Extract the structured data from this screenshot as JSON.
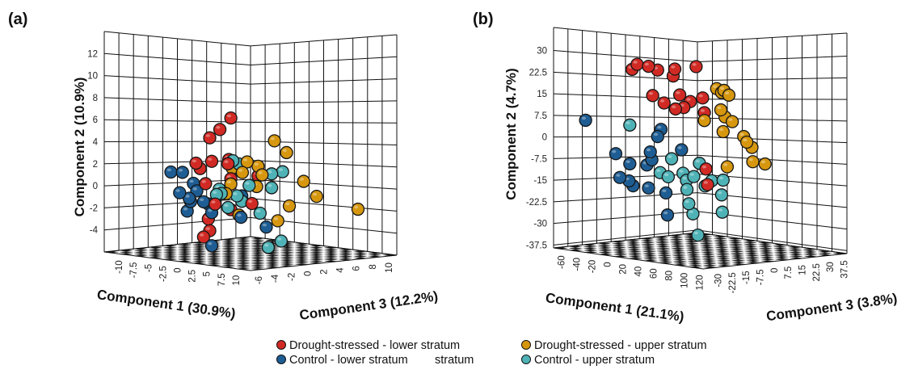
{
  "legend": {
    "items": [
      {
        "label": "Drought-stressed - lower stratum",
        "color": "#d12a24"
      },
      {
        "label": "Drought-stressed - upper stratum",
        "color": "#d6970f"
      },
      {
        "label": "Control - lower stratum",
        "color": "#1e5d93"
      },
      {
        "label": "Control - upper stratum",
        "color": "#4fb2b6"
      }
    ],
    "stray_text": "stratum"
  },
  "chart_data": [
    {
      "panel_label": "(a)",
      "type": "scatter",
      "projection": "3d",
      "grid": true,
      "axes": {
        "x": {
          "label": "Component 1 (30.9%)",
          "range": [
            -12.5,
            12.5
          ],
          "ticks": [
            "-10",
            "-7.5",
            "-5",
            "-2.5",
            "0",
            "2.5",
            "5",
            "7.5",
            "10"
          ],
          "tick_values": [
            -10,
            -7.5,
            -5,
            -2.5,
            0,
            2.5,
            5,
            7.5,
            10
          ]
        },
        "y": {
          "label": "Component 2 (10.9%)",
          "range": [
            -6,
            14
          ],
          "ticks": [
            "-4",
            "-2",
            "0",
            "2",
            "4",
            "6",
            "8",
            "10",
            "12"
          ],
          "tick_values": [
            -4,
            -2,
            0,
            2,
            4,
            6,
            8,
            10,
            12
          ]
        },
        "z": {
          "label": "Component 3 (12.2%)",
          "range": [
            -7,
            11
          ],
          "ticks": [
            "-6",
            "-4",
            "-2",
            "0",
            "2",
            "4",
            "6",
            "8",
            "10"
          ],
          "tick_values": [
            -6,
            -4,
            -2,
            0,
            2,
            4,
            6,
            8,
            10
          ]
        }
      },
      "point_format": [
        "component1",
        "component2",
        "component3"
      ],
      "series": [
        {
          "name": "Drought-stressed - lower stratum",
          "color": "#d12a24",
          "points": [
            [
              -1.7,
              6.7,
              0.8
            ],
            [
              -2.6,
              5.6,
              0.1
            ],
            [
              -3.5,
              4.8,
              -0.5
            ],
            [
              -4.6,
              2.4,
              -1.4
            ],
            [
              -4.3,
              1.9,
              -1.1
            ],
            [
              -3.3,
              2.6,
              -0.4
            ],
            [
              -1.9,
              2.8,
              0.7
            ],
            [
              -1.9,
              2.4,
              0.6
            ],
            [
              -1.7,
              1.0,
              0.8
            ],
            [
              -3.8,
              0.5,
              -0.8
            ],
            [
              0.6,
              1.3,
              2.5
            ],
            [
              -3.0,
              -1.4,
              -0.2
            ],
            [
              0.1,
              -1.3,
              2.1
            ],
            [
              -1.7,
              -1.9,
              0.8
            ],
            [
              -3.6,
              -2.8,
              -0.6
            ],
            [
              -3.5,
              -3.9,
              -0.5
            ],
            [
              -4.0,
              -4.5,
              -0.9
            ]
          ]
        },
        {
          "name": "Drought-stressed - upper stratum",
          "color": "#d6970f",
          "points": [
            [
              2.0,
              4.6,
              3.5
            ],
            [
              3.1,
              3.5,
              4.2
            ],
            [
              -0.3,
              2.6,
              1.8
            ],
            [
              -1.6,
              2.0,
              0.9
            ],
            [
              -0.7,
              1.6,
              1.5
            ],
            [
              0.6,
              2.2,
              2.5
            ],
            [
              1.0,
              1.4,
              2.7
            ],
            [
              -1.7,
              0.5,
              0.8
            ],
            [
              0.5,
              0.3,
              2.4
            ],
            [
              -2.1,
              -0.4,
              0.5
            ],
            [
              4.5,
              0.8,
              5.3
            ],
            [
              5.6,
              -0.6,
              6.1
            ],
            [
              3.3,
              -1.5,
              4.4
            ],
            [
              9.2,
              -1.8,
              8.6
            ],
            [
              -1.0,
              -2.4,
              1.3
            ],
            [
              2.3,
              -2.9,
              3.7
            ]
          ]
        },
        {
          "name": "Control - lower stratum",
          "color": "#1e5d93",
          "points": [
            [
              -6.8,
              1.5,
              -2.9
            ],
            [
              -5.8,
              1.5,
              -2.2
            ],
            [
              -4.9,
              0.5,
              -1.5
            ],
            [
              -4.6,
              -0.2,
              -1.3
            ],
            [
              -6.0,
              -0.4,
              -2.4
            ],
            [
              -5.2,
              -0.9,
              -1.8
            ],
            [
              -5.1,
              -1.2,
              -1.7
            ],
            [
              -4.0,
              -1.2,
              -0.9
            ],
            [
              -3.6,
              -1.4,
              -0.6
            ],
            [
              -5.4,
              -2.1,
              -1.9
            ],
            [
              -3.3,
              -2.2,
              -0.4
            ],
            [
              -0.8,
              -0.6,
              1.5
            ],
            [
              -0.8,
              -2.6,
              1.4
            ],
            [
              1.3,
              -3.5,
              3.0
            ],
            [
              -3.3,
              -5.3,
              -0.4
            ]
          ]
        },
        {
          "name": "Control - upper stratum",
          "color": "#4fb2b6",
          "points": [
            [
              -1.5,
              2.7,
              0.9
            ],
            [
              -1.0,
              2.4,
              1.3
            ],
            [
              -2.7,
              0.0,
              0.1
            ],
            [
              -2.9,
              -0.5,
              -0.1
            ],
            [
              -2.5,
              -0.4,
              0.2
            ],
            [
              -1.2,
              -0.6,
              1.2
            ],
            [
              -0.8,
              -1.1,
              1.5
            ],
            [
              -0.1,
              0.4,
              1.9
            ],
            [
              1.8,
              1.5,
              3.3
            ],
            [
              2.7,
              1.7,
              4.0
            ],
            [
              1.8,
              0.2,
              3.3
            ],
            [
              -1.9,
              -1.7,
              0.6
            ],
            [
              0.8,
              -2.2,
              2.6
            ],
            [
              2.6,
              -4.8,
              3.9
            ],
            [
              1.5,
              -5.4,
              3.1
            ]
          ]
        }
      ]
    },
    {
      "panel_label": "(b)",
      "type": "scatter",
      "projection": "3d",
      "grid": true,
      "axes": {
        "x": {
          "label": "Component 1 (21.1%)",
          "range": [
            -70,
            125
          ],
          "ticks": [
            "-60",
            "-40",
            "-20",
            "0",
            "20",
            "40",
            "60",
            "80",
            "100",
            "120"
          ],
          "tick_values": [
            -60,
            -40,
            -20,
            0,
            20,
            40,
            60,
            80,
            100,
            120
          ]
        },
        "y": {
          "label": "Component 2 (4.7%)",
          "range": [
            -38.5,
            38
          ],
          "ticks": [
            "-37.5",
            "-30",
            "-22.5",
            "-15",
            "-7.5",
            "0",
            "7.5",
            "15",
            "22.5",
            "30"
          ],
          "tick_values": [
            -37.5,
            -30,
            -22.5,
            -15,
            -7.5,
            0,
            7.5,
            15,
            22.5,
            30
          ]
        },
        "z": {
          "label": "Component 3 (3.8%)",
          "range": [
            -38,
            39
          ],
          "ticks": [
            "-30",
            "-22.5",
            "-15",
            "-7.5",
            "0",
            "7.5",
            "15",
            "22.5",
            "30",
            "37.5"
          ],
          "tick_values": [
            -30,
            -22.5,
            -15,
            -7.5,
            0,
            7.5,
            15,
            22.5,
            30,
            37.5
          ]
        }
      },
      "point_format": [
        "component1",
        "component2",
        "component3"
      ],
      "series": [
        {
          "name": "Drought-stressed - lower stratum",
          "color": "#d12a24",
          "points": [
            [
              -14.4,
              27.6,
              -16.1
            ],
            [
              -17.7,
              25.7,
              -17.4
            ],
            [
              -6.8,
              27.1,
              -13.1
            ],
            [
              -0.8,
              25.9,
              -10.7
            ],
            [
              10.6,
              26.5,
              -6.2
            ],
            [
              9.5,
              24.0,
              -6.6
            ],
            [
              24.8,
              27.6,
              -0.6
            ],
            [
              -4.1,
              16.7,
              -12.0
            ],
            [
              13.9,
              17.3,
              -4.9
            ],
            [
              3.5,
              14.2,
              -9.0
            ],
            [
              11.1,
              12.2,
              -6.0
            ],
            [
              16.6,
              12.8,
              -3.8
            ],
            [
              20.9,
              15.0,
              -2.1
            ],
            [
              29.1,
              16.4,
              1.1
            ],
            [
              30.2,
              11.1,
              1.6
            ],
            [
              31.4,
              -9.1,
              2.0
            ],
            [
              32.4,
              -14.7,
              2.4
            ]
          ]
        },
        {
          "name": "Drought-stressed - upper stratum",
          "color": "#d6970f",
          "points": [
            [
              38.4,
              19.8,
              4.8
            ],
            [
              43.3,
              19.2,
              6.7
            ],
            [
              41.7,
              18.4,
              6.1
            ],
            [
              46.6,
              17.5,
              8.0
            ],
            [
              41.2,
              12.2,
              5.9
            ],
            [
              43.9,
              9.7,
              7.0
            ],
            [
              48.8,
              8.0,
              8.9
            ],
            [
              30.2,
              8.3,
              1.6
            ],
            [
              42.7,
              4.4,
              6.5
            ],
            [
              56.4,
              2.7,
              11.9
            ],
            [
              58.5,
              0.7,
              12.7
            ],
            [
              61.8,
              -1.2,
              14.1
            ],
            [
              62.4,
              -6.3,
              14.3
            ],
            [
              70.6,
              -7.1,
              17.5
            ],
            [
              45.4,
              -8.2,
              7.6
            ]
          ]
        },
        {
          "name": "Control - lower stratum",
          "color": "#1e5d93",
          "points": [
            [
              -48.7,
              6.6,
              -29.6
            ],
            [
              1.4,
              4.7,
              -9.8
            ],
            [
              -0.8,
              2.1,
              -10.7
            ],
            [
              -28.6,
              -4.6,
              -21.7
            ],
            [
              -5.7,
              -3.5,
              -12.6
            ],
            [
              -4.7,
              -6.3,
              -12.2
            ],
            [
              -8.0,
              -8.2,
              -13.5
            ],
            [
              -19.3,
              -8.0,
              -18.0
            ],
            [
              15.0,
              -2.4,
              -4.4
            ],
            [
              -25.9,
              -13.0,
              -20.6
            ],
            [
              -19.9,
              -14.1,
              -18.2
            ],
            [
              -17.2,
              -15.8,
              -17.1
            ],
            [
              -6.8,
              -16.4,
              -13.1
            ],
            [
              4.7,
              -18.0,
              -8.5
            ],
            [
              5.7,
              -25.9,
              -8.1
            ]
          ]
        },
        {
          "name": "Control - upper stratum",
          "color": "#4fb2b6",
          "points": [
            [
              -19.3,
              5.8,
              -18.0
            ],
            [
              8.4,
              -5.7,
              -7.0
            ],
            [
              26.9,
              -7.1,
              0.3
            ],
            [
              0.8,
              -10.8,
              -10.0
            ],
            [
              6.2,
              -12.2,
              -7.9
            ],
            [
              16.0,
              -10.8,
              -4.0
            ],
            [
              23.2,
              -11.9,
              -1.2
            ],
            [
              18.3,
              -13.3,
              -3.1
            ],
            [
              35.1,
              -13.3,
              3.5
            ],
            [
              42.7,
              -13.0,
              6.5
            ],
            [
              30.8,
              -15.2,
              1.8
            ],
            [
              18.7,
              -16.6,
              -3.0
            ],
            [
              41.7,
              -18.3,
              6.1
            ],
            [
              19.9,
              -21.7,
              -2.5
            ],
            [
              22.6,
              -25.3,
              -1.4
            ],
            [
              42.1,
              -24.5,
              6.3
            ],
            [
              25.9,
              -32.9,
              -0.1
            ]
          ]
        }
      ]
    }
  ]
}
